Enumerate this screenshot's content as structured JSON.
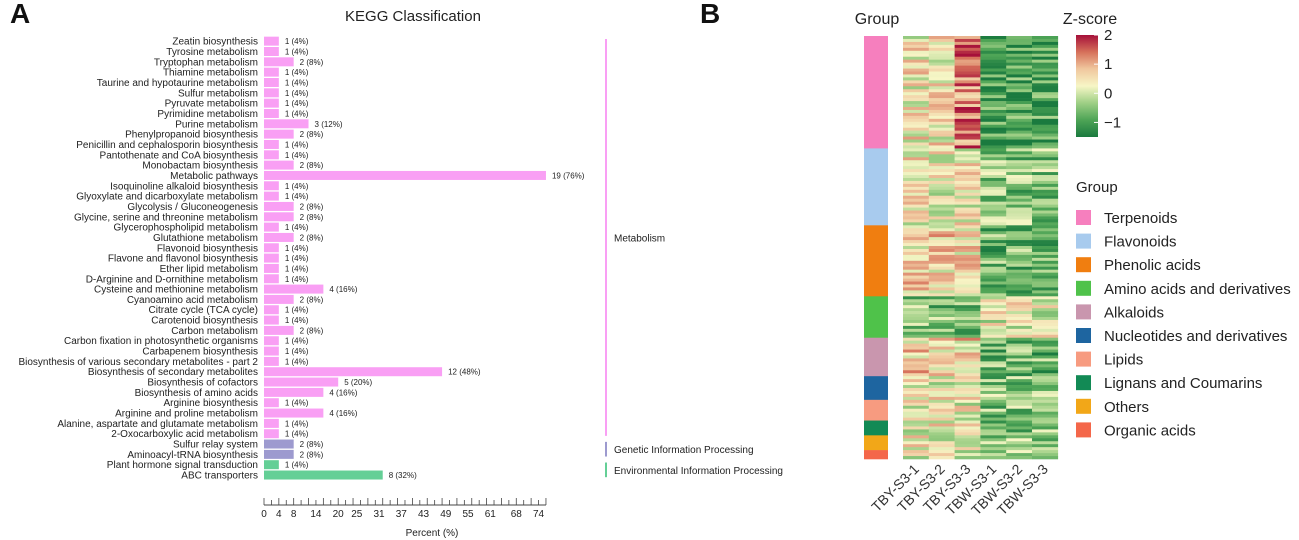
{
  "panel_a": {
    "letter": "A",
    "chart_data": {
      "type": "bar",
      "orientation": "horizontal",
      "title": "KEGG Classification",
      "xlabel": "Percent (%)",
      "ylabel": "",
      "xlim": [
        0,
        76
      ],
      "x_ticks": [
        0,
        4,
        8,
        14,
        20,
        25,
        31,
        37,
        43,
        49,
        55,
        61,
        68,
        74
      ],
      "categories": [
        "Zeatin biosynthesis",
        "Tyrosine metabolism",
        "Tryptophan metabolism",
        "Thiamine metabolism",
        "Taurine and hypotaurine metabolism",
        "Sulfur metabolism",
        "Pyruvate metabolism",
        "Pyrimidine metabolism",
        "Purine metabolism",
        "Phenylpropanoid biosynthesis",
        "Penicillin and cephalosporin biosynthesis",
        "Pantothenate and CoA biosynthesis",
        "Monobactam biosynthesis",
        "Metabolic pathways",
        "Isoquinoline alkaloid biosynthesis",
        "Glyoxylate and dicarboxylate metabolism",
        "Glycolysis / Gluconeogenesis",
        "Glycine, serine and threonine metabolism",
        "Glycerophospholipid metabolism",
        "Glutathione metabolism",
        "Flavonoid biosynthesis",
        "Flavone and flavonol biosynthesis",
        "Ether lipid metabolism",
        "D-Arginine and D-ornithine metabolism",
        "Cysteine and methionine metabolism",
        "Cyanoamino acid metabolism",
        "Citrate cycle (TCA cycle)",
        "Carotenoid biosynthesis",
        "Carbon metabolism",
        "Carbon fixation in photosynthetic organisms",
        "Carbapenem biosynthesis",
        "Biosynthesis of various secondary metabolites - part 2",
        "Biosynthesis of secondary metabolites",
        "Biosynthesis of cofactors",
        "Biosynthesis of amino acids",
        "Arginine biosynthesis",
        "Arginine and proline metabolism",
        "Alanine, aspartate and glutamate metabolism",
        "2-Oxocarboxylic acid metabolism",
        "Sulfur relay system",
        "Aminoacyl-tRNA biosynthesis",
        "Plant hormone signal transduction",
        "ABC transporters"
      ],
      "values": [
        4,
        4,
        8,
        4,
        4,
        4,
        4,
        4,
        12,
        8,
        4,
        4,
        8,
        76,
        4,
        4,
        8,
        8,
        4,
        8,
        4,
        4,
        4,
        4,
        16,
        8,
        4,
        4,
        8,
        4,
        4,
        4,
        48,
        20,
        16,
        4,
        16,
        4,
        4,
        8,
        8,
        4,
        32
      ],
      "labels": [
        "1 (4%)",
        "1 (4%)",
        "2 (8%)",
        "1 (4%)",
        "1 (4%)",
        "1 (4%)",
        "1 (4%)",
        "1 (4%)",
        "3 (12%)",
        "2 (8%)",
        "1 (4%)",
        "1 (4%)",
        "2 (8%)",
        "19 (76%)",
        "1 (4%)",
        "1 (4%)",
        "2 (8%)",
        "2 (8%)",
        "1 (4%)",
        "2 (8%)",
        "1 (4%)",
        "1 (4%)",
        "1 (4%)",
        "1 (4%)",
        "4 (16%)",
        "2 (8%)",
        "1 (4%)",
        "1 (4%)",
        "2 (8%)",
        "1 (4%)",
        "1 (4%)",
        "1 (4%)",
        "12 (48%)",
        "5 (20%)",
        "4 (16%)",
        "1 (4%)",
        "4 (16%)",
        "1 (4%)",
        "1 (4%)",
        "2 (8%)",
        "2 (8%)",
        "1 (4%)",
        "8 (32%)"
      ],
      "groups": [
        {
          "name": "Metabolism",
          "color": "#f99ff4",
          "start": 0,
          "end": 38
        },
        {
          "name": "Genetic Information Processing",
          "color": "#9d9acf",
          "start": 39,
          "end": 40
        },
        {
          "name": "Environmental Information Processing",
          "color": "#64cf96",
          "start": 41,
          "end": 42
        }
      ]
    }
  },
  "panel_b": {
    "letter": "B",
    "chart_data": {
      "type": "heatmap",
      "group_title": "Group",
      "colorbar_title": "Z-score",
      "colorbar_ticks": [
        2,
        1,
        0,
        -1
      ],
      "colorbar_tick_labels": [
        "2",
        "1",
        "0",
        "−1"
      ],
      "zlim": [
        -1.5,
        2
      ],
      "samples": [
        "TBY-S3-1",
        "TBY-S3-2",
        "TBY-S3-3",
        "TBW-S3-1",
        "TBW-S3-2",
        "TBW-S3-3"
      ],
      "legend_title": "Group",
      "groups": [
        {
          "name": "Terpenoids",
          "color": "#f67fbe",
          "rows": 38
        },
        {
          "name": "Flavonoids",
          "color": "#a8cbee",
          "rows": 26
        },
        {
          "name": "Phenolic acids",
          "color": "#f07e10",
          "rows": 24
        },
        {
          "name": "Amino acids and derivatives",
          "color": "#4fc24a",
          "rows": 14
        },
        {
          "name": "Alkaloids",
          "color": "#c996ae",
          "rows": 13
        },
        {
          "name": "Nucleotides and derivatives",
          "color": "#1e65a0",
          "rows": 8
        },
        {
          "name": "Lipids",
          "color": "#f79b80",
          "rows": 7
        },
        {
          "name": "Lignans and Coumarins",
          "color": "#128a55",
          "rows": 5
        },
        {
          "name": "Others",
          "color": "#f2a718",
          "rows": 5
        },
        {
          "name": "Organic acids",
          "color": "#f4674a",
          "rows": 3
        }
      ],
      "values_note": "",
      "colormap": [
        "#1a7a3f",
        "#4ea456",
        "#9ecf85",
        "#f7f6c6",
        "#f0c79e",
        "#d6705a",
        "#a6103a"
      ]
    }
  }
}
